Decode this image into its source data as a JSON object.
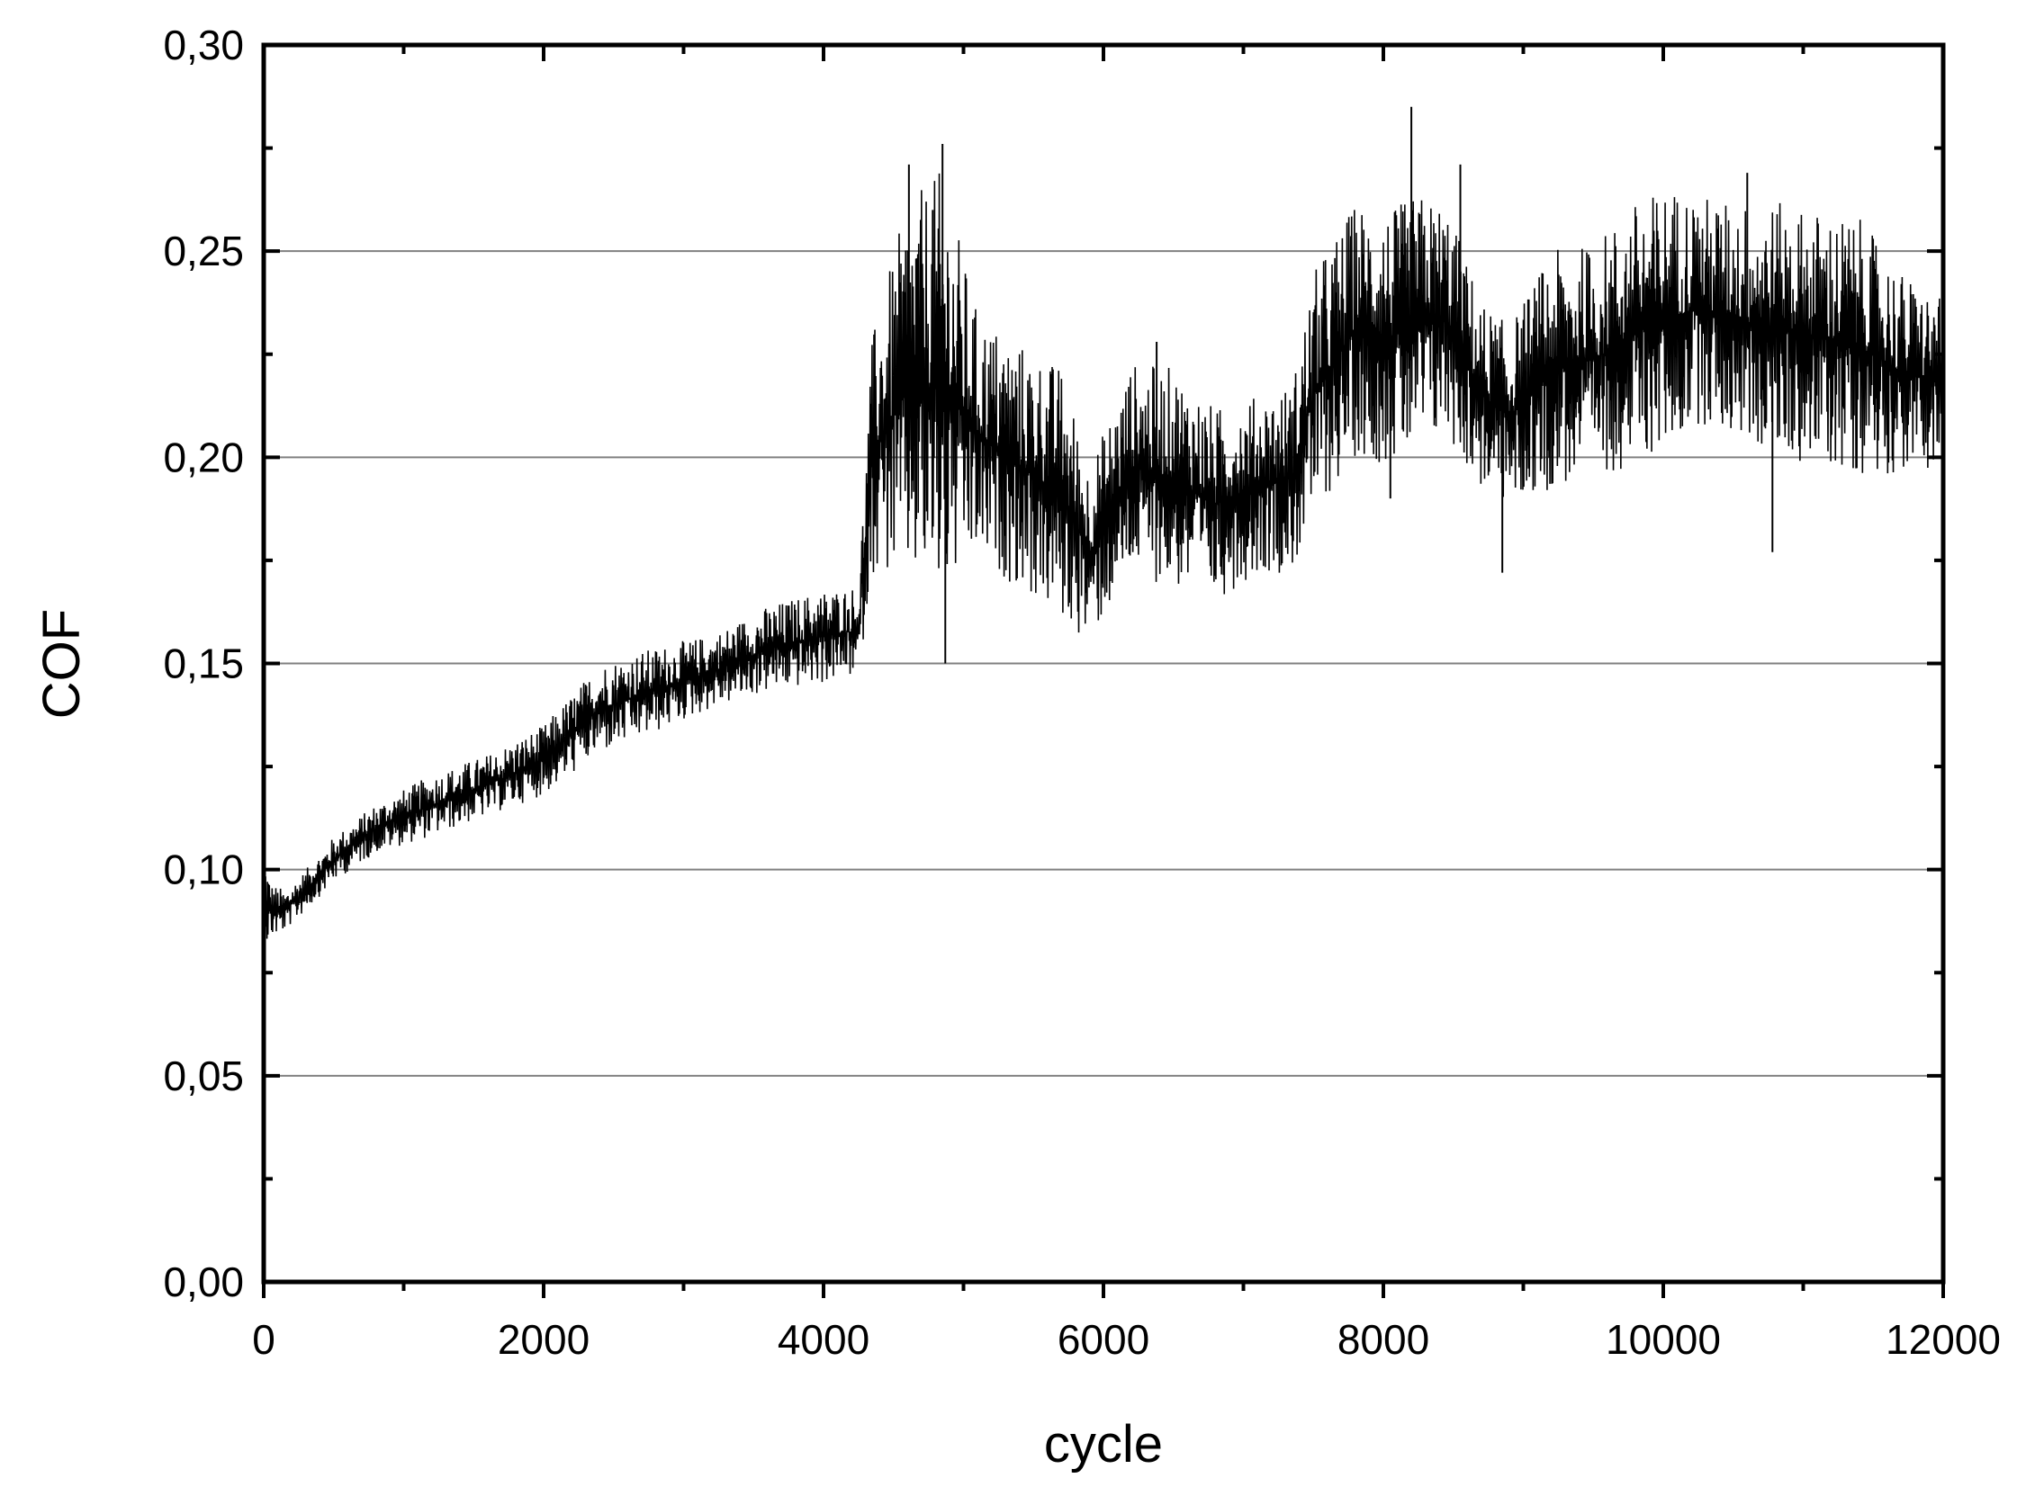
{
  "chart_data": {
    "type": "line",
    "title": "",
    "xlabel": "cycle",
    "ylabel": "COF",
    "xlim": [
      0,
      12000
    ],
    "ylim": [
      0.0,
      0.3
    ],
    "x_ticks": [
      "0",
      "2000",
      "4000",
      "6000",
      "8000",
      "10000",
      "12000"
    ],
    "y_ticks": [
      "0,00",
      "0,05",
      "0,10",
      "0,15",
      "0,20",
      "0,25",
      "0,30"
    ],
    "grid": "horizontal",
    "legend": "none",
    "line_color": "#000000",
    "series": [
      {
        "x": [
          0,
          50,
          150,
          300,
          500,
          800,
          1200,
          1600,
          2000,
          2400,
          2800,
          3200,
          3600,
          4000,
          4250,
          4350,
          4600,
          4850,
          5100,
          5400,
          5700,
          5900,
          6200,
          6500,
          6800,
          7100,
          7350,
          7500,
          7800,
          8050,
          8250,
          8450,
          8700,
          8900,
          9200,
          9500,
          9800,
          10050,
          10250,
          10500,
          10800,
          11100,
          11400,
          11700,
          12000
        ],
        "upper": [
          0.106,
          0.097,
          0.095,
          0.1,
          0.108,
          0.116,
          0.123,
          0.128,
          0.135,
          0.15,
          0.154,
          0.157,
          0.164,
          0.168,
          0.169,
          0.23,
          0.262,
          0.27,
          0.235,
          0.228,
          0.222,
          0.198,
          0.223,
          0.222,
          0.212,
          0.215,
          0.218,
          0.245,
          0.262,
          0.26,
          0.264,
          0.262,
          0.238,
          0.232,
          0.25,
          0.252,
          0.262,
          0.266,
          0.264,
          0.262,
          0.262,
          0.26,
          0.258,
          0.245,
          0.238
        ],
        "lower": [
          0.08,
          0.083,
          0.085,
          0.09,
          0.097,
          0.104,
          0.108,
          0.113,
          0.118,
          0.128,
          0.133,
          0.139,
          0.143,
          0.145,
          0.147,
          0.172,
          0.17,
          0.165,
          0.175,
          0.168,
          0.16,
          0.155,
          0.172,
          0.168,
          0.165,
          0.172,
          0.172,
          0.185,
          0.2,
          0.198,
          0.2,
          0.205,
          0.192,
          0.188,
          0.192,
          0.195,
          0.198,
          0.202,
          0.208,
          0.205,
          0.2,
          0.198,
          0.196,
          0.196,
          0.198
        ],
        "spikes": [
          {
            "x": 4610,
            "y": 0.271
          },
          {
            "x": 4780,
            "y": 0.26
          },
          {
            "x": 4850,
            "y": 0.276
          },
          {
            "x": 4870,
            "y": 0.15
          },
          {
            "x": 6380,
            "y": 0.228
          },
          {
            "x": 8050,
            "y": 0.19
          },
          {
            "x": 8200,
            "y": 0.285
          },
          {
            "x": 8550,
            "y": 0.271
          },
          {
            "x": 8850,
            "y": 0.172
          },
          {
            "x": 10600,
            "y": 0.269
          },
          {
            "x": 10780,
            "y": 0.177
          }
        ]
      }
    ]
  }
}
